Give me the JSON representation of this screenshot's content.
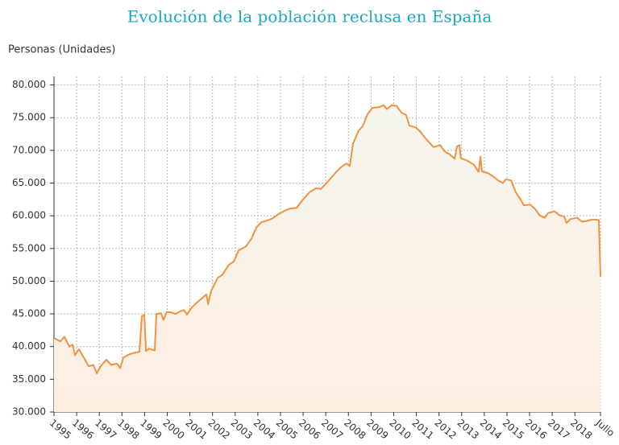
{
  "chart_data": {
    "type": "line",
    "title": "Evolución de la población reclusa en España",
    "y_label": "Personas (Unidades)",
    "color": "#f0923f",
    "grid": true,
    "x": [
      1995,
      1995.28,
      1995.46,
      1995.68,
      1995.82,
      1995.93,
      1996.1,
      1996.32,
      1996.53,
      1996.74,
      1996.89,
      1997.06,
      1997.31,
      1997.53,
      1997.78,
      1997.92,
      1998.06,
      1998.31,
      1998.59,
      1998.77,
      1998.88,
      1998.99,
      1999.06,
      1999.2,
      1999.45,
      1999.52,
      1999.73,
      1999.84,
      1999.98,
      2000.2,
      2000.37,
      2000.52,
      2000.73,
      2000.87,
      2001.09,
      2001.33,
      2001.51,
      2001.73,
      2001.8,
      2001.94,
      2002.22,
      2002.44,
      2002.72,
      2002.94,
      2003.15,
      2003.47,
      2003.72,
      2003.93,
      2004.15,
      2004.43,
      2004.64,
      2004.93,
      2005.21,
      2005.43,
      2005.71,
      2006.0,
      2006.28,
      2006.57,
      2006.78,
      2007.03,
      2007.21,
      2007.49,
      2007.7,
      2007.92,
      2008.06,
      2008.2,
      2008.45,
      2008.63,
      2008.84,
      2009.06,
      2009.34,
      2009.56,
      2009.7,
      2009.91,
      2010.12,
      2010.34,
      2010.55,
      2010.69,
      2010.98,
      2011.19,
      2011.41,
      2011.62,
      2011.76,
      2012.05,
      2012.26,
      2012.47,
      2012.69,
      2012.79,
      2012.9,
      2012.97,
      2013.26,
      2013.54,
      2013.75,
      2013.83,
      2013.9,
      2014.18,
      2014.4,
      2014.61,
      2014.82,
      2014.96,
      2015.18,
      2015.39,
      2015.6,
      2015.75,
      2016.03,
      2016.25,
      2016.46,
      2016.67,
      2016.81,
      2017.1,
      2017.31,
      2017.53,
      2017.63,
      2017.81,
      2018.1,
      2018.31,
      2018.52,
      2018.74,
      2018.95,
      2019.06,
      2019.13
    ],
    "values": [
      41300,
      40800,
      41500,
      40000,
      40300,
      38700,
      39600,
      38300,
      37000,
      37200,
      35900,
      37000,
      38000,
      37200,
      37400,
      36700,
      38300,
      38800,
      39100,
      39200,
      44600,
      44900,
      39300,
      39700,
      39400,
      45000,
      45100,
      44100,
      45300,
      45200,
      45000,
      45300,
      45600,
      44900,
      46000,
      46800,
      47300,
      48000,
      46500,
      48500,
      50500,
      51000,
      52500,
      53000,
      54700,
      55300,
      56500,
      58200,
      59000,
      59300,
      59600,
      60300,
      60800,
      61100,
      61200,
      62500,
      63600,
      64200,
      64100,
      65000,
      65700,
      66800,
      67500,
      68000,
      67600,
      71000,
      73000,
      73700,
      75500,
      76500,
      76600,
      76900,
      76300,
      76900,
      76800,
      75800,
      75400,
      73800,
      73500,
      72800,
      71800,
      71000,
      70500,
      70800,
      69800,
      69400,
      68700,
      70600,
      70800,
      68800,
      68400,
      67800,
      66700,
      69000,
      66800,
      66500,
      66000,
      65400,
      65000,
      65600,
      65400,
      63600,
      62500,
      61600,
      61700,
      61000,
      60000,
      59700,
      60400,
      60700,
      60100,
      59900,
      58900,
      59500,
      59700,
      59100,
      59200,
      59400,
      59400,
      59300,
      50700
    ],
    "xlim": [
      1995,
      2019.13
    ],
    "xticks": [
      1995,
      1996,
      1997,
      1998,
      1999,
      2000,
      2001,
      2002,
      2003,
      2004,
      2005,
      2006,
      2007,
      2008,
      2009,
      2010,
      2011,
      2012,
      2013,
      2014,
      2015,
      2016,
      2017,
      2018,
      {
        "value": 2019.13,
        "label": "Julio"
      }
    ],
    "ylim": [
      30000,
      81300
    ],
    "yticks": [
      {
        "value": 30000,
        "label": "30.000"
      },
      {
        "value": 35000,
        "label": "35.000"
      },
      {
        "value": 40000,
        "label": "40.000"
      },
      {
        "value": 45000,
        "label": "45.000"
      },
      {
        "value": 50000,
        "label": "50.000"
      },
      {
        "value": 55000,
        "label": "55.000"
      },
      {
        "value": 60000,
        "label": "60.000"
      },
      {
        "value": 65000,
        "label": "65.000"
      },
      {
        "value": 70000,
        "label": "70.000"
      },
      {
        "value": 75000,
        "label": "75.000"
      },
      {
        "value": 80000,
        "label": "80.000"
      }
    ]
  }
}
